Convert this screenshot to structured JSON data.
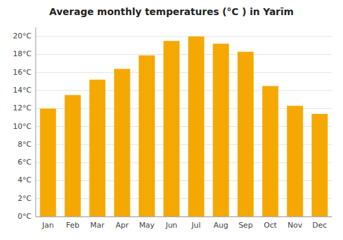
{
  "chart_data": {
    "type": "bar",
    "title": "Average monthly temperatures (°C ) in Yarīm",
    "categories": [
      "Jan",
      "Feb",
      "Mar",
      "Apr",
      "May",
      "Jun",
      "Jul",
      "Aug",
      "Sep",
      "Oct",
      "Nov",
      "Dec"
    ],
    "values": [
      12.0,
      13.5,
      15.2,
      16.4,
      17.9,
      19.5,
      20.0,
      19.2,
      18.3,
      14.5,
      12.3,
      11.4
    ],
    "color": "#F5A800",
    "ylim": [
      0,
      21
    ],
    "yticks": [
      {
        "value": 0,
        "label": "0°C"
      },
      {
        "value": 2,
        "label": "2°C"
      },
      {
        "value": 4,
        "label": "4°C"
      },
      {
        "value": 6,
        "label": "6°C"
      },
      {
        "value": 8,
        "label": "8°C"
      },
      {
        "value": 10,
        "label": "10°C"
      },
      {
        "value": 12,
        "label": "12°C"
      },
      {
        "value": 14,
        "label": "14°C"
      },
      {
        "value": 16,
        "label": "16°C"
      },
      {
        "value": 18,
        "label": "18°C"
      },
      {
        "value": 20,
        "label": "20°C"
      }
    ],
    "grid": true
  }
}
